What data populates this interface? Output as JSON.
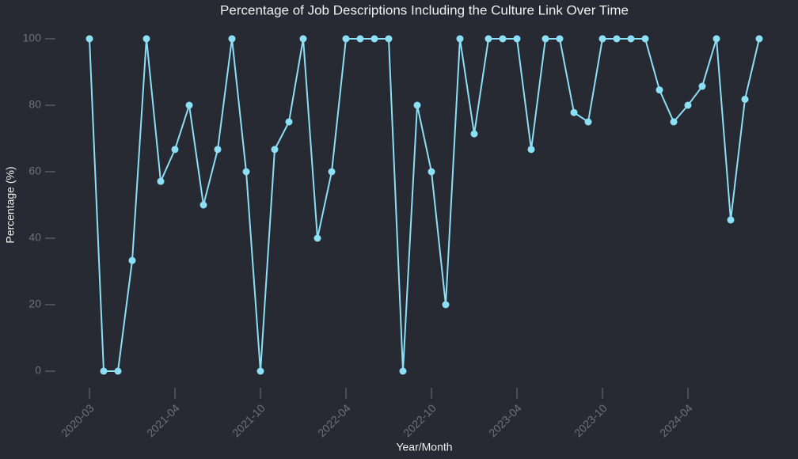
{
  "chart_data": {
    "type": "line",
    "title": "Percentage of Job Descriptions Including the Culture Link Over Time",
    "x_label": "Year/Month",
    "y_label": "Percentage (%)",
    "categories": [
      "2020-03",
      null,
      null,
      null,
      null,
      null,
      "2021-04",
      null,
      null,
      null,
      null,
      null,
      "2021-10",
      null,
      null,
      null,
      null,
      null,
      "2022-04",
      null,
      null,
      null,
      null,
      null,
      "2022-10",
      null,
      null,
      null,
      null,
      null,
      "2023-04",
      null,
      null,
      null,
      null,
      null,
      "2023-10",
      null,
      null,
      null,
      null,
      null,
      "2024-04",
      null,
      null,
      null,
      null,
      null
    ],
    "series": [
      {
        "name": "Percentage",
        "color": "#8be0f5",
        "values": [
          100,
          0,
          0,
          33.3,
          100,
          57.1,
          66.7,
          80,
          50,
          66.7,
          100,
          60,
          0,
          66.7,
          75,
          100,
          40,
          60,
          100,
          100,
          100,
          100,
          0,
          80,
          60,
          20,
          100,
          71.4,
          100,
          100,
          100,
          66.7,
          100,
          100,
          77.8,
          75,
          100,
          100,
          100,
          100,
          84.6,
          75,
          80,
          85.7,
          100,
          45.5,
          81.8,
          100
        ]
      }
    ],
    "ylim": [
      -7,
      107
    ],
    "yticks": [
      0,
      20,
      40,
      60,
      80,
      100
    ],
    "grid": false
  }
}
